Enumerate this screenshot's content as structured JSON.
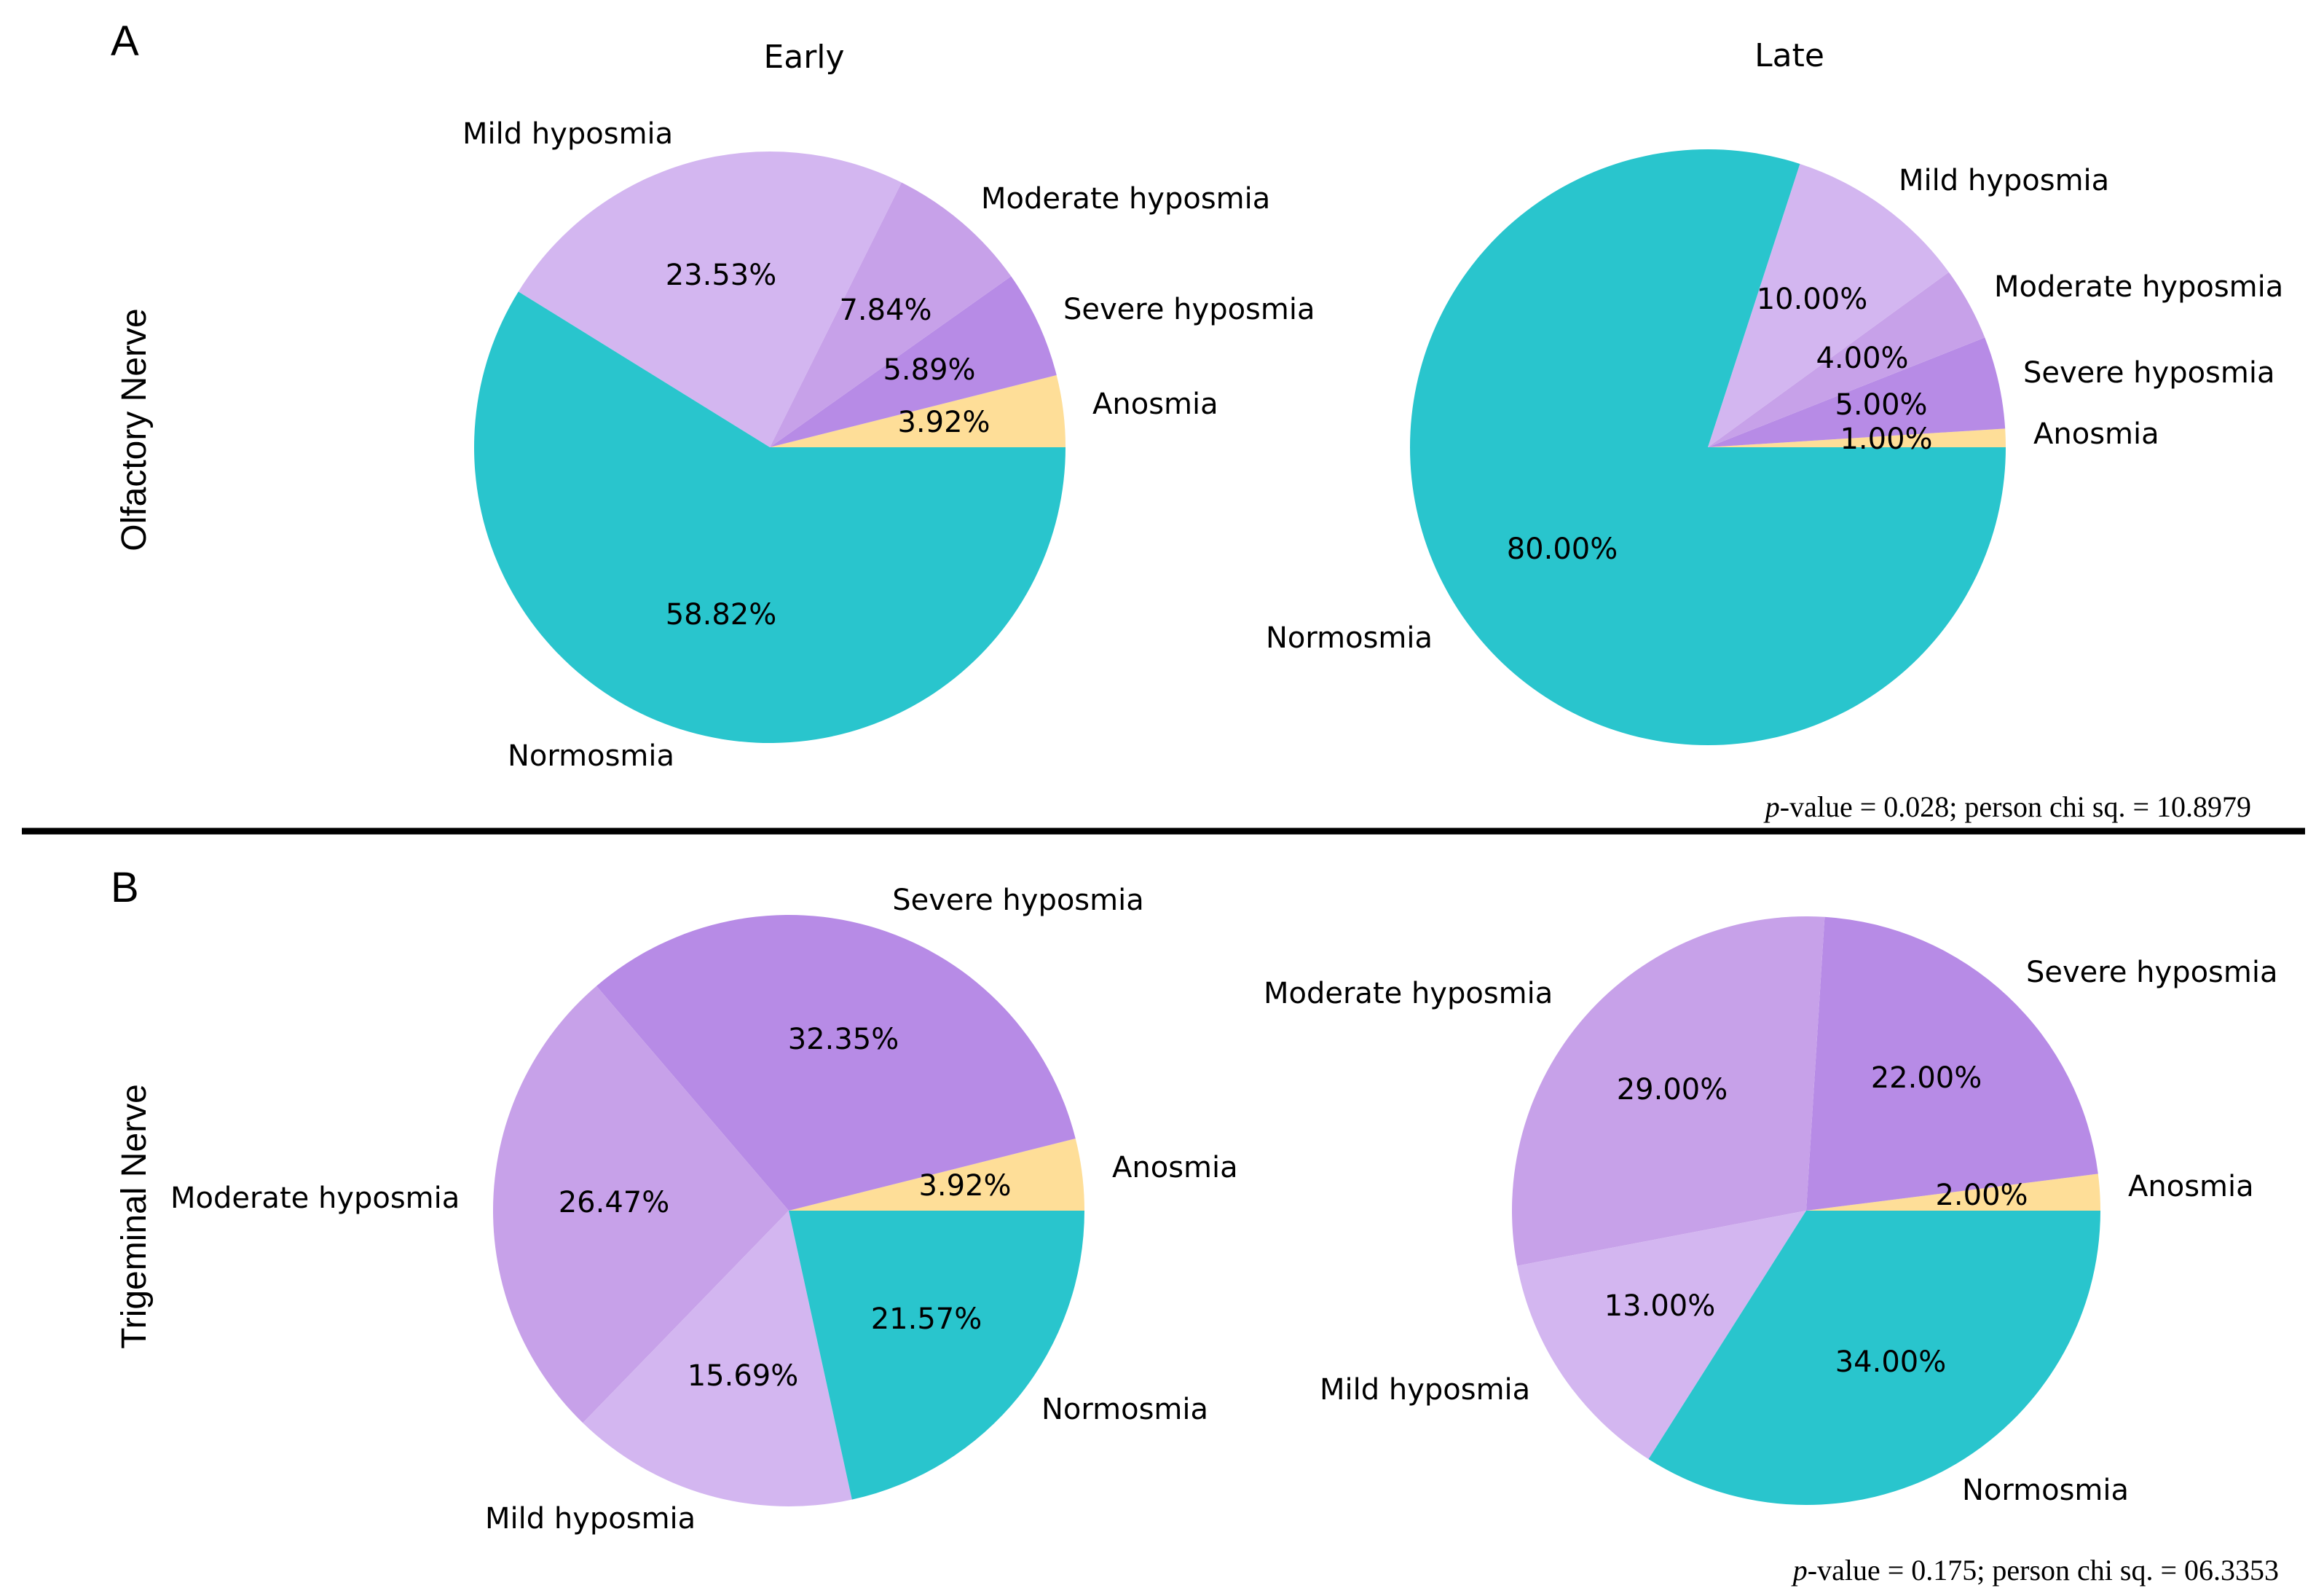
{
  "panels": [
    {
      "letter": "A",
      "row_label": "Olfactory Nerve",
      "stat": {
        "p_label": "p",
        "text": "-value = 0.028; person chi sq. = 10.8979"
      }
    },
    {
      "letter": "B",
      "row_label": "Trigeminal Nerve",
      "stat": {
        "p_label": "p",
        "text": "-value = 0.175; person chi sq. = 06.3353"
      }
    }
  ],
  "colors": {
    "Normosmia": "#29c5cd",
    "Mild hyposmia": "#d3b6f0",
    "Moderate hyposmia": "#c7a1e9",
    "Severe hyposmia": "#b78be6",
    "Anosmia": "#fede98"
  },
  "chart_data": [
    {
      "type": "pie",
      "title": "Early",
      "panel": "A",
      "slices": [
        {
          "label": "Normosmia",
          "value": 58.82,
          "text": "58.82%"
        },
        {
          "label": "Mild hyposmia",
          "value": 23.53,
          "text": "23.53%"
        },
        {
          "label": "Moderate hyposmia",
          "value": 7.84,
          "text": "7.84%"
        },
        {
          "label": "Severe hyposmia",
          "value": 5.89,
          "text": "5.89%"
        },
        {
          "label": "Anosmia",
          "value": 3.92,
          "text": "3.92%"
        }
      ]
    },
    {
      "type": "pie",
      "title": "Late",
      "panel": "A",
      "slices": [
        {
          "label": "Normosmia",
          "value": 80.0,
          "text": "80.00%"
        },
        {
          "label": "Mild hyposmia",
          "value": 10.0,
          "text": "10.00%"
        },
        {
          "label": "Moderate hyposmia",
          "value": 4.0,
          "text": "4.00%"
        },
        {
          "label": "Severe hyposmia",
          "value": 5.0,
          "text": "5.00%"
        },
        {
          "label": "Anosmia",
          "value": 1.0,
          "text": "1.00%"
        }
      ]
    },
    {
      "type": "pie",
      "title": "",
      "panel": "B",
      "slices": [
        {
          "label": "Normosmia",
          "value": 21.57,
          "text": "21.57%"
        },
        {
          "label": "Mild hyposmia",
          "value": 15.69,
          "text": "15.69%"
        },
        {
          "label": "Moderate hyposmia",
          "value": 26.47,
          "text": "26.47%"
        },
        {
          "label": "Severe hyposmia",
          "value": 32.35,
          "text": "32.35%"
        },
        {
          "label": "Anosmia",
          "value": 3.92,
          "text": "3.92%"
        }
      ]
    },
    {
      "type": "pie",
      "title": "",
      "panel": "B",
      "slices": [
        {
          "label": "Normosmia",
          "value": 34.0,
          "text": "34.00%"
        },
        {
          "label": "Mild hyposmia",
          "value": 13.0,
          "text": "13.00%"
        },
        {
          "label": "Moderate hyposmia",
          "value": 29.0,
          "text": "29.00%"
        },
        {
          "label": "Severe hyposmia",
          "value": 22.0,
          "text": "22.00%"
        },
        {
          "label": "Anosmia",
          "value": 2.0,
          "text": "2.00%"
        }
      ]
    }
  ]
}
